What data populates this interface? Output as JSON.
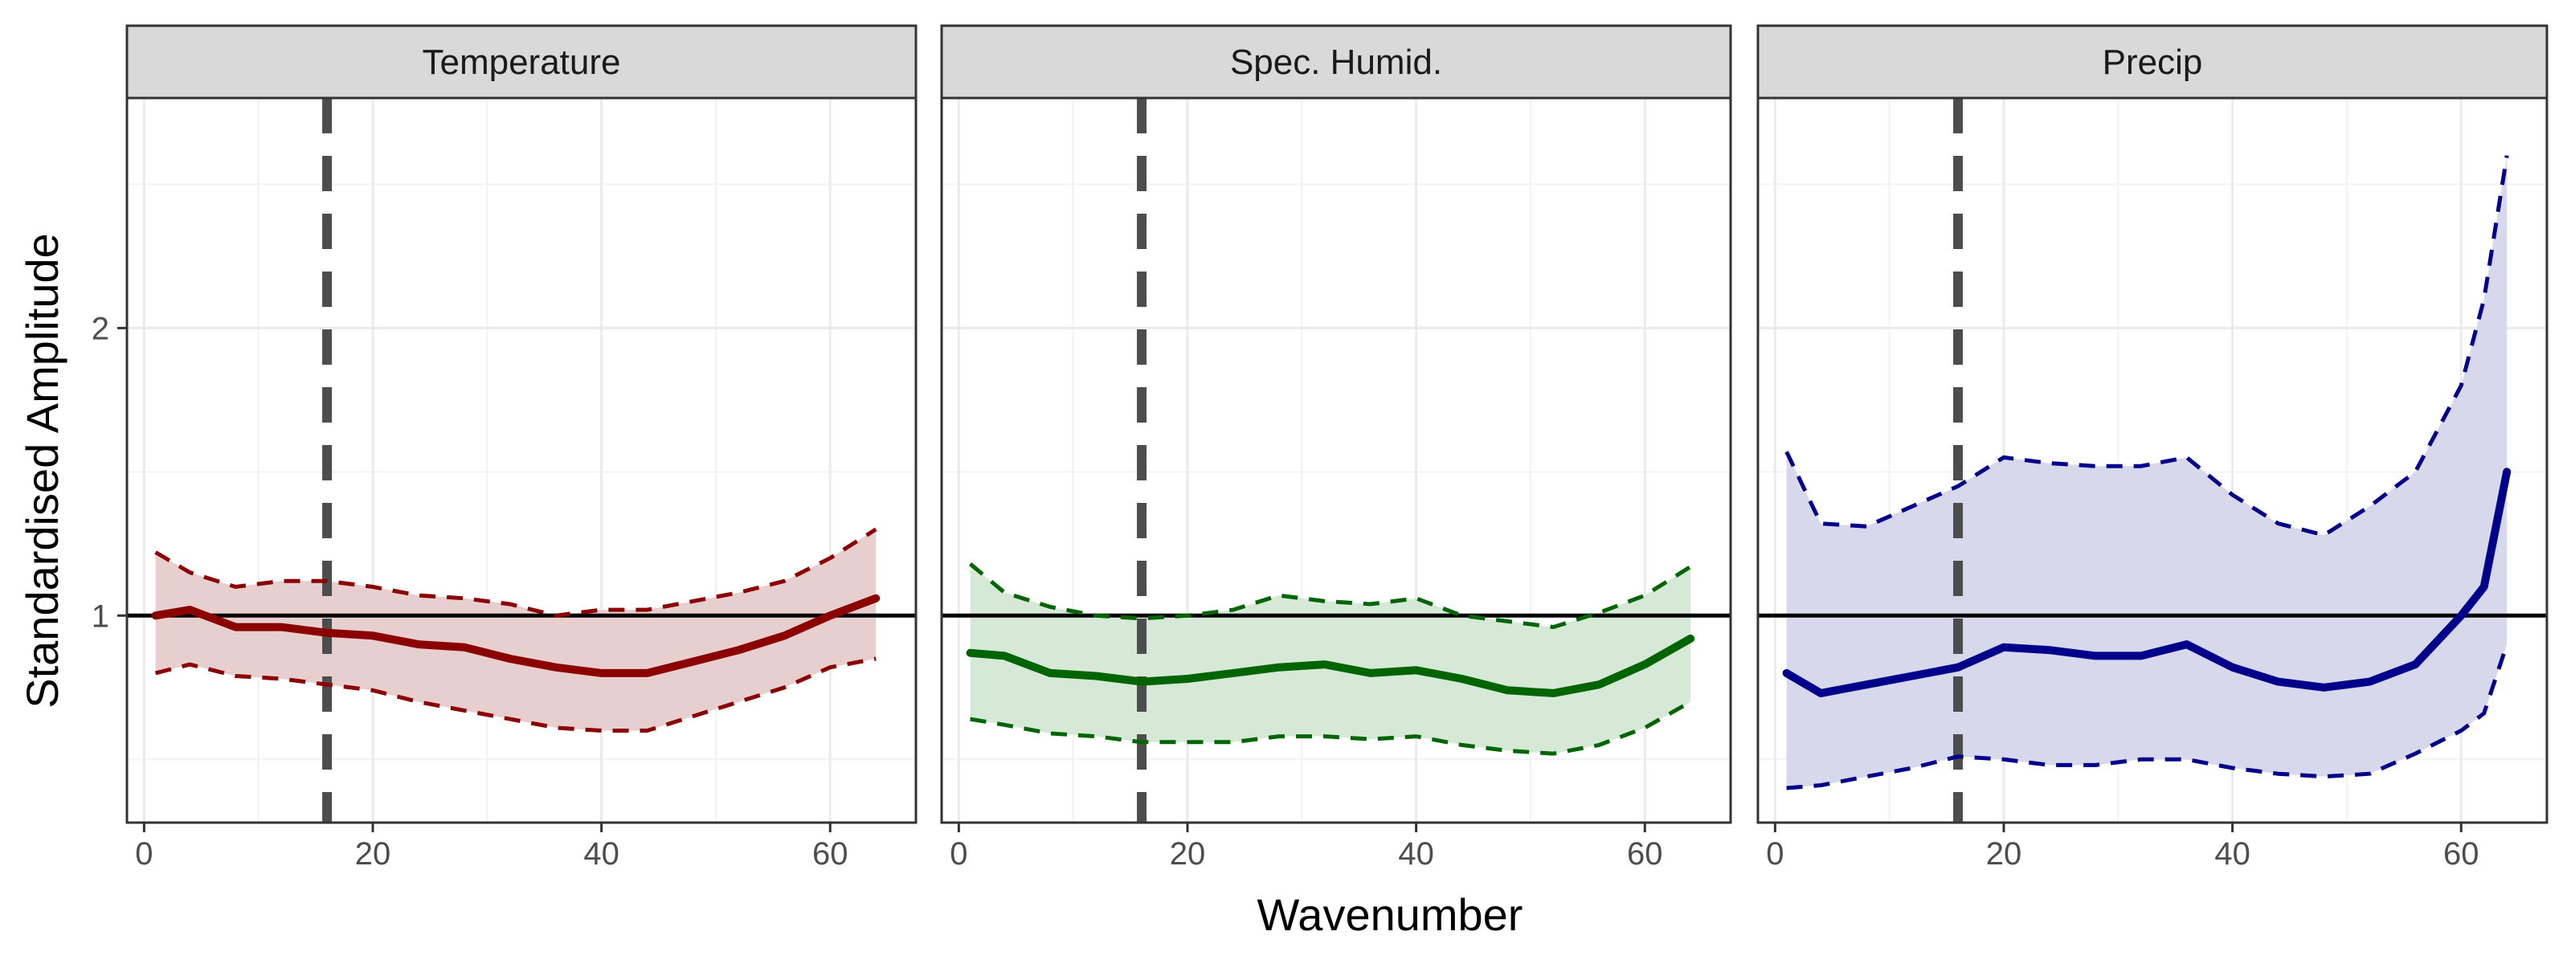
{
  "chart_data": {
    "type": "line",
    "xlabel": "Wavenumber",
    "ylabel": "Standardised Amplitude",
    "xlim": [
      -1.5,
      67.5
    ],
    "ylim": [
      0.28,
      2.8
    ],
    "x_ticks": [
      0,
      20,
      40,
      60
    ],
    "y_ticks": [
      1,
      2
    ],
    "reference_hline": 1,
    "reference_vline": 16,
    "grid": true,
    "legend": "none",
    "panels": [
      {
        "title": "Temperature",
        "color": "#8B0000",
        "fill": "#E8CFCF",
        "x": [
          1,
          4,
          8,
          12,
          16,
          20,
          24,
          28,
          32,
          36,
          40,
          44,
          48,
          52,
          56,
          60,
          64
        ],
        "mean": [
          1.0,
          1.02,
          0.96,
          0.96,
          0.94,
          0.93,
          0.9,
          0.89,
          0.85,
          0.82,
          0.8,
          0.8,
          0.84,
          0.88,
          0.93,
          1.0,
          1.06
        ],
        "upper": [
          1.22,
          1.15,
          1.1,
          1.12,
          1.12,
          1.1,
          1.07,
          1.06,
          1.04,
          1.0,
          1.02,
          1.02,
          1.05,
          1.08,
          1.12,
          1.2,
          1.3
        ],
        "lower": [
          0.8,
          0.83,
          0.79,
          0.78,
          0.76,
          0.74,
          0.7,
          0.67,
          0.64,
          0.61,
          0.6,
          0.6,
          0.65,
          0.7,
          0.75,
          0.82,
          0.85
        ]
      },
      {
        "title": "Spec. Humid.",
        "color": "#006400",
        "fill": "#D6E8D6",
        "x": [
          1,
          4,
          8,
          12,
          16,
          20,
          24,
          28,
          32,
          36,
          40,
          44,
          48,
          52,
          56,
          60,
          64
        ],
        "mean": [
          0.87,
          0.86,
          0.8,
          0.79,
          0.77,
          0.78,
          0.8,
          0.82,
          0.83,
          0.8,
          0.81,
          0.78,
          0.74,
          0.73,
          0.76,
          0.83,
          0.92
        ],
        "upper": [
          1.18,
          1.08,
          1.03,
          1.0,
          0.99,
          1.0,
          1.02,
          1.07,
          1.05,
          1.04,
          1.06,
          1.0,
          0.98,
          0.96,
          1.01,
          1.07,
          1.17
        ],
        "lower": [
          0.64,
          0.62,
          0.59,
          0.58,
          0.56,
          0.56,
          0.56,
          0.58,
          0.58,
          0.57,
          0.58,
          0.55,
          0.53,
          0.52,
          0.55,
          0.61,
          0.7
        ]
      },
      {
        "title": "Precip",
        "color": "#00008B",
        "fill": "#D8D8EC",
        "x": [
          1,
          4,
          8,
          12,
          16,
          20,
          24,
          28,
          32,
          36,
          40,
          44,
          48,
          52,
          56,
          60,
          62,
          64
        ],
        "mean": [
          0.8,
          0.73,
          0.76,
          0.79,
          0.82,
          0.89,
          0.88,
          0.86,
          0.86,
          0.9,
          0.82,
          0.77,
          0.75,
          0.77,
          0.83,
          1.0,
          1.1,
          1.5
        ],
        "upper": [
          1.57,
          1.32,
          1.31,
          1.38,
          1.45,
          1.55,
          1.53,
          1.52,
          1.52,
          1.55,
          1.42,
          1.32,
          1.28,
          1.38,
          1.5,
          1.8,
          2.1,
          2.6
        ],
        "lower": [
          0.4,
          0.41,
          0.44,
          0.47,
          0.51,
          0.5,
          0.48,
          0.48,
          0.5,
          0.5,
          0.47,
          0.45,
          0.44,
          0.45,
          0.52,
          0.6,
          0.66,
          0.9
        ]
      }
    ]
  }
}
